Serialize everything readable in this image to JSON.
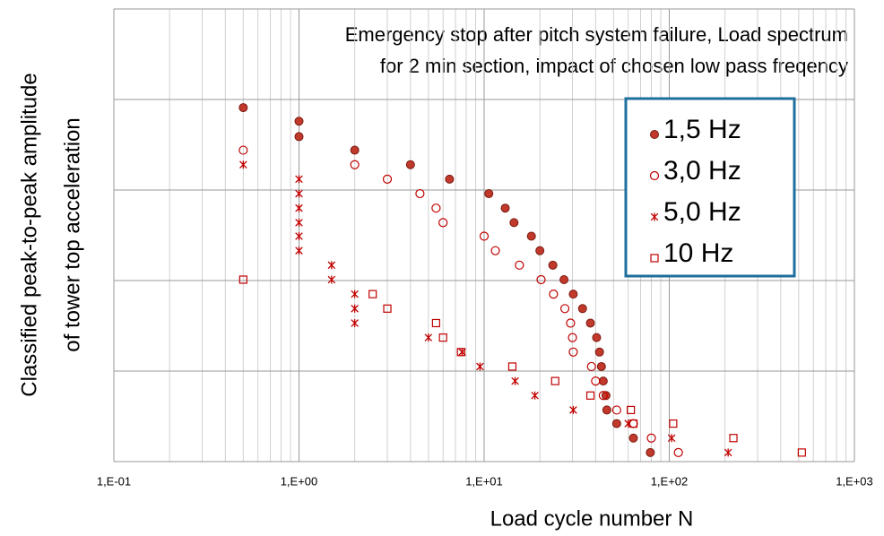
{
  "chart_data": {
    "type": "scatter",
    "title": [
      "Emergency stop after pitch system failure, Load spectrum",
      "for 2 min section, impact of chosen low pass freqency"
    ],
    "x_label": "Load cycle number N",
    "y_label": [
      "Classified peak-to-peak amplitude",
      "of tower top acceleration"
    ],
    "x_log": true,
    "xlim": [
      0.1,
      1000
    ],
    "xticks": [
      {
        "value": 0.1,
        "label": "1,E-01"
      },
      {
        "value": 1,
        "label": "1,E+00"
      },
      {
        "value": 10,
        "label": "1,E+01"
      },
      {
        "value": 100,
        "label": "1,E+02"
      },
      {
        "value": 1000,
        "label": "1,E+03"
      }
    ],
    "ylim": [
      0,
      5
    ],
    "yticks": [
      0,
      1,
      2,
      3,
      4,
      5
    ],
    "grid": true,
    "legend_position": "upper right",
    "series": [
      {
        "name": "1,5 Hz",
        "marker": "filled-circle",
        "color": "#c0392b",
        "x": [
          0.5,
          1,
          1,
          2,
          4,
          6.5,
          10.6,
          13,
          14.5,
          18,
          20,
          23.5,
          27,
          30.3,
          34,
          37.5,
          40.5,
          42,
          43,
          44,
          45.5,
          46,
          52,
          64,
          79
        ],
        "values": [
          3.91,
          3.76,
          3.59,
          3.44,
          3.28,
          3.12,
          2.96,
          2.8,
          2.64,
          2.49,
          2.33,
          2.17,
          2.01,
          1.85,
          1.69,
          1.53,
          1.37,
          1.21,
          1.05,
          0.89,
          0.73,
          0.57,
          0.42,
          0.26,
          0.1
        ]
      },
      {
        "name": "3,0 Hz",
        "marker": "circle",
        "color": "#c00000",
        "x": [
          0.5,
          2,
          3,
          4.5,
          5.5,
          6,
          10,
          11.5,
          15.5,
          20.3,
          23.7,
          27.3,
          29.3,
          30,
          30.3,
          38,
          40,
          44,
          52,
          64,
          80,
          112
        ],
        "values": [
          3.44,
          3.28,
          3.12,
          2.96,
          2.8,
          2.64,
          2.49,
          2.33,
          2.17,
          2.01,
          1.85,
          1.69,
          1.53,
          1.37,
          1.21,
          1.05,
          0.89,
          0.73,
          0.57,
          0.42,
          0.26,
          0.1
        ]
      },
      {
        "name": "5,0 Hz",
        "marker": "star",
        "color": "#c00000",
        "x": [
          0.5,
          1,
          1,
          1,
          1,
          1,
          1,
          1.5,
          1.5,
          2,
          2,
          2,
          5,
          7.6,
          9.5,
          14.7,
          18.8,
          30.3,
          60,
          103,
          208
        ],
        "values": [
          3.28,
          3.12,
          2.96,
          2.8,
          2.64,
          2.49,
          2.33,
          2.17,
          2.01,
          1.85,
          1.69,
          1.53,
          1.37,
          1.21,
          1.05,
          0.89,
          0.73,
          0.57,
          0.42,
          0.26,
          0.1
        ]
      },
      {
        "name": "10 Hz",
        "marker": "square",
        "color": "#c00000",
        "x": [
          0.5,
          2.5,
          3,
          5.5,
          6,
          7.5,
          14.2,
          24.2,
          37.5,
          62,
          64,
          105,
          222,
          520
        ],
        "values": [
          2.01,
          1.85,
          1.69,
          1.53,
          1.37,
          1.21,
          1.05,
          0.89,
          0.73,
          0.57,
          0.42,
          0.42,
          0.26,
          0.1
        ]
      }
    ]
  }
}
